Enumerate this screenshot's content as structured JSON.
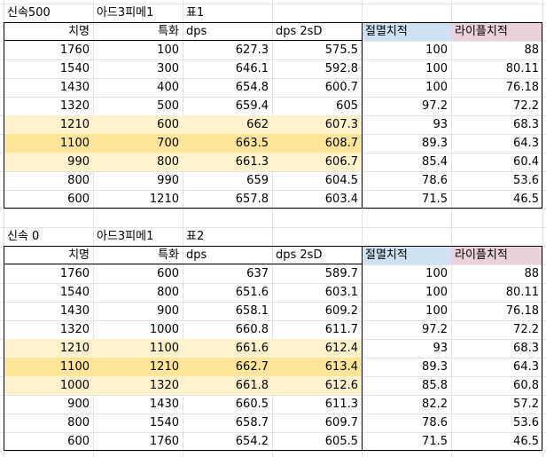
{
  "table1": {
    "title_cells": [
      "신속500",
      "아드3피메1",
      "표1"
    ],
    "headers": [
      "치명",
      "특화",
      "dps",
      "dps 2sD",
      "절멸치적",
      "라이플치적"
    ],
    "rows": [
      [
        "1760",
        "100",
        "627.3",
        "575.5",
        "100",
        "88"
      ],
      [
        "1540",
        "300",
        "646.1",
        "592.8",
        "100",
        "80.11"
      ],
      [
        "1430",
        "400",
        "654.8",
        "600.7",
        "100",
        "76.18"
      ],
      [
        "1320",
        "500",
        "659.4",
        "605",
        "97.2",
        "72.2"
      ],
      [
        "1210",
        "600",
        "662",
        "607.3",
        "93",
        "68.3"
      ],
      [
        "1100",
        "700",
        "663.5",
        "608.7",
        "89.3",
        "64.3"
      ],
      [
        "990",
        "800",
        "661.3",
        "606.7",
        "85.4",
        "60.4"
      ],
      [
        "800",
        "990",
        "659",
        "604.5",
        "78.6",
        "53.6"
      ],
      [
        "600",
        "1210",
        "657.8",
        "603.4",
        "71.5",
        "46.5"
      ]
    ],
    "highlight": [
      "none",
      "none",
      "none",
      "none",
      "light",
      "dark",
      "light",
      "none",
      "none"
    ]
  },
  "table2": {
    "title_cells": [
      "신속 0",
      "아드3피메1",
      "표2"
    ],
    "headers": [
      "치명",
      "특화",
      "dps",
      "dps 2sD",
      "절멸치적",
      "라이플치적"
    ],
    "rows": [
      [
        "1760",
        "600",
        "637",
        "589.7",
        "100",
        "88"
      ],
      [
        "1540",
        "800",
        "651.6",
        "603.1",
        "100",
        "80.11"
      ],
      [
        "1430",
        "900",
        "658.1",
        "609.2",
        "100",
        "76.18"
      ],
      [
        "1320",
        "1000",
        "660.8",
        "611.7",
        "97.2",
        "72.2"
      ],
      [
        "1210",
        "1100",
        "661.6",
        "612.4",
        "93",
        "68.3"
      ],
      [
        "1100",
        "1210",
        "662.7",
        "613.4",
        "89.3",
        "64.3"
      ],
      [
        "1000",
        "1320",
        "661.8",
        "612.6",
        "85.8",
        "60.8"
      ],
      [
        "900",
        "1430",
        "660.5",
        "611.3",
        "82.2",
        "57.2"
      ],
      [
        "800",
        "1540",
        "658.7",
        "609.7",
        "78.6",
        "53.6"
      ],
      [
        "600",
        "1760",
        "654.2",
        "605.5",
        "71.5",
        "46.5"
      ]
    ],
    "highlight": [
      "none",
      "none",
      "none",
      "none",
      "light",
      "dark",
      "light",
      "none",
      "none",
      "none"
    ]
  },
  "colors": {
    "header_blue": "#cfe2f3",
    "header_pink": "#ead1dc",
    "highlight_light": "#fff2cc",
    "highlight_dark": "#ffe599",
    "gridline": "#e2e3e3"
  }
}
